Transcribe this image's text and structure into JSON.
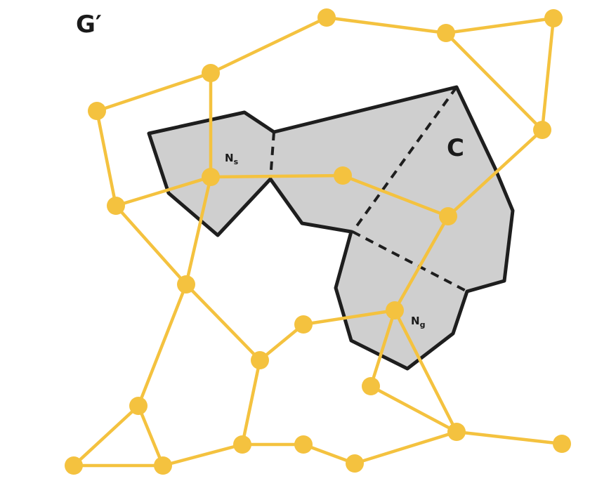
{
  "labels": {
    "graph": "G′",
    "region": "C",
    "start_node_main": "N",
    "start_node_sub": "s",
    "goal_node_main": "N",
    "goal_node_sub": "g"
  },
  "colors": {
    "graph": "#f4c23f",
    "region_fill": "#cfcfcf",
    "region_stroke": "#1e1e1e",
    "text": "#1a1a1a"
  }
}
